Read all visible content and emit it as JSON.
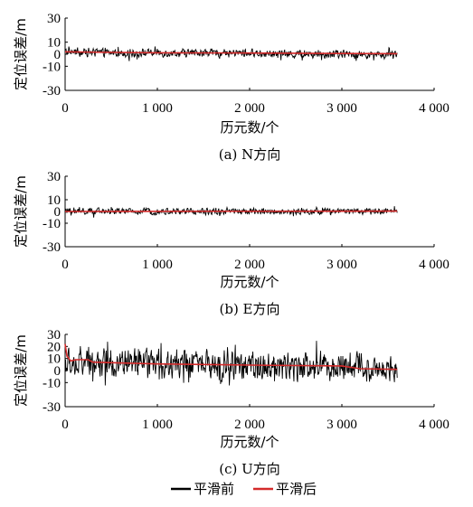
{
  "chart_data": [
    {
      "type": "line",
      "caption": "(a) N方向",
      "xlabel": "历元数/个",
      "ylabel": "定位误差/m",
      "xlim": [
        0,
        4000
      ],
      "ylim": [
        -30,
        30
      ],
      "xticks": [
        0,
        1000,
        2000,
        3000,
        4000
      ],
      "xtick_labels": [
        "0",
        "1 000",
        "2 000",
        "3 000",
        "4 000"
      ],
      "yticks": [
        30,
        10,
        0,
        -10,
        -30
      ],
      "ytick_labels": [
        "30",
        "10",
        "0",
        "-10",
        "-30"
      ],
      "x_end": 3600,
      "series": [
        {
          "name": "平滑前",
          "color": "#000000",
          "amplitude": 5,
          "points": [
            [
              0,
              2
            ],
            [
              600,
              1
            ],
            [
              1200,
              1
            ],
            [
              1900,
              1
            ],
            [
              2500,
              0
            ],
            [
              3000,
              0
            ],
            [
              3600,
              -1
            ]
          ]
        },
        {
          "name": "平滑后",
          "color": "#d42a2a",
          "points": [
            [
              0,
              2
            ],
            [
              400,
              1.6
            ],
            [
              1000,
              1.2
            ],
            [
              2000,
              1.0
            ],
            [
              3000,
              0.6
            ],
            [
              3600,
              0.4
            ]
          ]
        }
      ]
    },
    {
      "type": "line",
      "caption": "(b) E方向",
      "xlabel": "历元数/个",
      "ylabel": "定位误差/m",
      "xlim": [
        0,
        4000
      ],
      "ylim": [
        -30,
        30
      ],
      "xticks": [
        0,
        1000,
        2000,
        3000,
        4000
      ],
      "xtick_labels": [
        "0",
        "1 000",
        "2 000",
        "3 000",
        "4 000"
      ],
      "yticks": [
        30,
        10,
        0,
        -10,
        -30
      ],
      "ytick_labels": [
        "30",
        "10",
        "0",
        "-10",
        "-30"
      ],
      "x_end": 3600,
      "series": [
        {
          "name": "平滑前",
          "color": "#000000",
          "amplitude": 4,
          "points": [
            [
              0,
              0
            ],
            [
              1200,
              0
            ],
            [
              2400,
              0
            ],
            [
              3600,
              0
            ]
          ]
        },
        {
          "name": "平滑后",
          "color": "#d42a2a",
          "points": [
            [
              0,
              0
            ],
            [
              1800,
              0.2
            ],
            [
              3600,
              0.3
            ]
          ]
        }
      ]
    },
    {
      "type": "line",
      "caption": "(c) U方向",
      "xlabel": "历元数/个",
      "ylabel": "定位误差/m",
      "xlim": [
        0,
        4000
      ],
      "ylim": [
        -30,
        30
      ],
      "xticks": [
        0,
        1000,
        2000,
        3000,
        4000
      ],
      "xtick_labels": [
        "0",
        "1 000",
        "2 000",
        "3 000",
        "4 000"
      ],
      "yticks": [
        30,
        20,
        10,
        0,
        -10,
        -30
      ],
      "ytick_labels": [
        "30",
        "20",
        "10",
        "0",
        "-10",
        "-30"
      ],
      "x_end": 3600,
      "series": [
        {
          "name": "平滑前",
          "color": "#000000",
          "amplitude": 18,
          "points": [
            [
              0,
              6
            ],
            [
              400,
              6
            ],
            [
              1000,
              5
            ],
            [
              2000,
              4
            ],
            [
              3000,
              4
            ],
            [
              3600,
              2
            ]
          ]
        },
        {
          "name": "平滑后",
          "color": "#d42a2a",
          "points": [
            [
              0,
              22
            ],
            [
              20,
              12
            ],
            [
              60,
              8
            ],
            [
              120,
              9
            ],
            [
              250,
              9
            ],
            [
              300,
              7
            ],
            [
              500,
              6.5
            ],
            [
              1000,
              5.5
            ],
            [
              2000,
              4.5
            ],
            [
              3000,
              3.8
            ],
            [
              3200,
              1.5
            ],
            [
              3600,
              1
            ]
          ]
        }
      ]
    }
  ],
  "legend": {
    "items": [
      {
        "label": "平滑前",
        "color": "#000000"
      },
      {
        "label": "平滑后",
        "color": "#d42a2a"
      }
    ]
  }
}
